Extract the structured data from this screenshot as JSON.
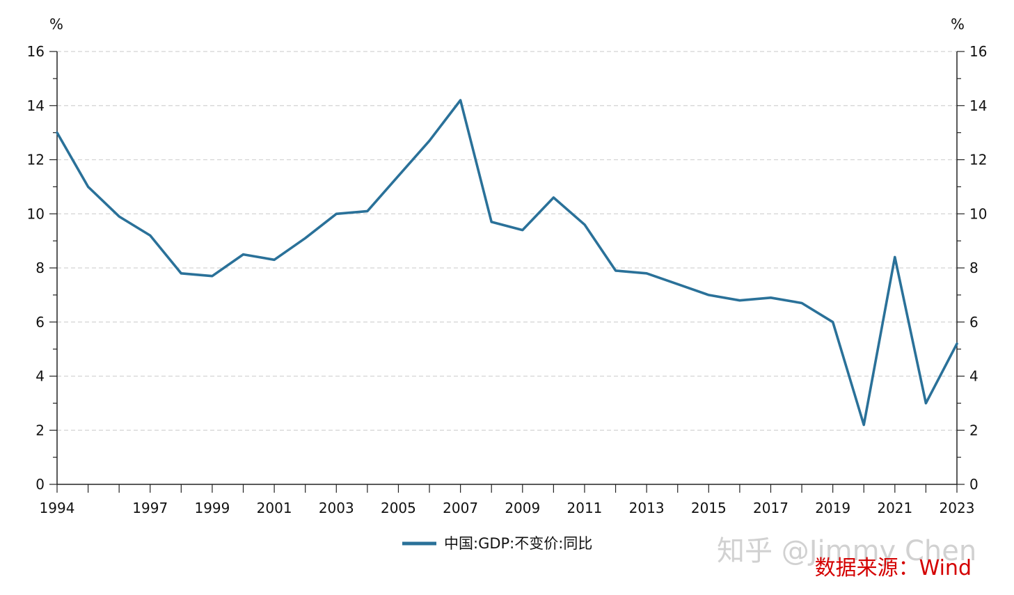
{
  "chart_data": {
    "type": "line",
    "y_unit_left": "%",
    "y_unit_right": "%",
    "x": [
      1994,
      1995,
      1996,
      1997,
      1998,
      1999,
      2000,
      2001,
      2002,
      2003,
      2004,
      2005,
      2006,
      2007,
      2008,
      2009,
      2010,
      2011,
      2012,
      2013,
      2014,
      2015,
      2016,
      2017,
      2018,
      2019,
      2020,
      2021,
      2022,
      2023
    ],
    "x_tick_labels": [
      "1994",
      "1997",
      "1999",
      "2001",
      "2003",
      "2005",
      "2007",
      "2009",
      "2011",
      "2013",
      "2015",
      "2017",
      "2019",
      "2021",
      "2023"
    ],
    "ylim": [
      0,
      16
    ],
    "y_tick_labels": [
      "0",
      "2",
      "4",
      "6",
      "8",
      "10",
      "12",
      "14",
      "16"
    ],
    "grid": true,
    "series": [
      {
        "name": "中国:GDP:不变价:同比",
        "color": "#2a7199",
        "values": [
          13.0,
          11.0,
          9.9,
          9.2,
          7.8,
          7.7,
          8.5,
          8.3,
          9.1,
          10.0,
          10.1,
          11.4,
          12.7,
          14.2,
          9.7,
          9.4,
          10.6,
          9.6,
          7.9,
          7.8,
          7.4,
          7.0,
          6.8,
          6.9,
          6.7,
          6.0,
          2.2,
          8.4,
          3.0,
          5.2
        ]
      }
    ]
  },
  "watermark": "知乎 @Jimmy Chen",
  "source": "数据来源：Wind"
}
